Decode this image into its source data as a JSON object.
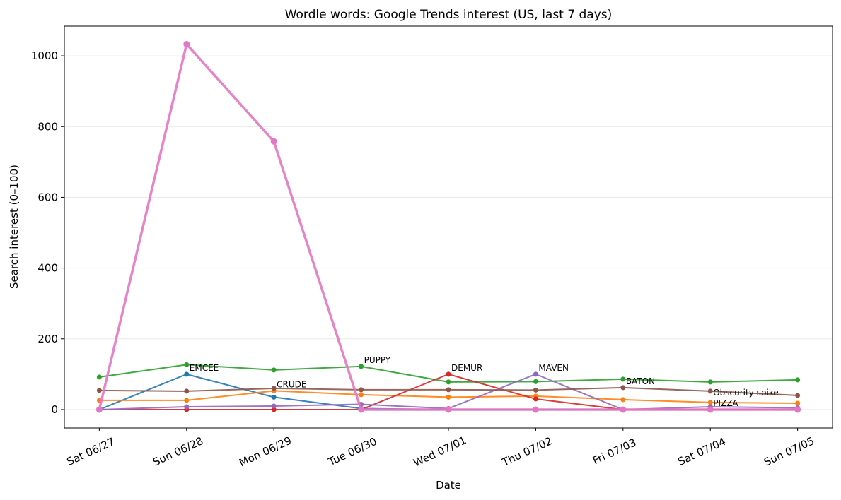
{
  "chart_data": {
    "type": "line",
    "title": "Wordle words: Google Trends interest (US, last 7 days)",
    "xlabel": "Date",
    "ylabel": "Search interest (0–100)",
    "categories": [
      "Sat 06/27",
      "Sun 06/28",
      "Mon 06/29",
      "Tue 06/30",
      "Wed 07/01",
      "Thu 07/02",
      "Fri 07/03",
      "Sat 07/04",
      "Sun 07/05"
    ],
    "series": [
      {
        "color": "#1f77b4",
        "linewidth": 2,
        "values": [
          0,
          100,
          35,
          3,
          0,
          0,
          0,
          0,
          0
        ]
      },
      {
        "color": "#ff7f0e",
        "linewidth": 2,
        "values": [
          26,
          26,
          53,
          42,
          35,
          38,
          28,
          20,
          18
        ]
      },
      {
        "color": "#2ca02c",
        "linewidth": 2,
        "values": [
          92,
          127,
          112,
          122,
          78,
          79,
          86,
          78,
          84
        ]
      },
      {
        "color": "#d62728",
        "linewidth": 2,
        "values": [
          0,
          0,
          0,
          0,
          100,
          30,
          0,
          0,
          0
        ]
      },
      {
        "color": "#9467bd",
        "linewidth": 2,
        "values": [
          0,
          8,
          10,
          15,
          3,
          100,
          0,
          8,
          5
        ]
      },
      {
        "color": "#8c564b",
        "linewidth": 2,
        "values": [
          54,
          52,
          60,
          56,
          56,
          55,
          62,
          52,
          40
        ]
      },
      {
        "color": "#e377c2",
        "linewidth": 3.5,
        "values": [
          0,
          1033,
          758,
          0,
          0,
          0,
          0,
          0,
          0
        ]
      }
    ],
    "annotations": [
      {
        "text": "EMCEE",
        "category": "Sun 06/28",
        "y": 100
      },
      {
        "text": "CRUDE",
        "category": "Mon 06/29",
        "y": 53
      },
      {
        "text": "PUPPY",
        "category": "Tue 06/30",
        "y": 122
      },
      {
        "text": "DEMUR",
        "category": "Wed 07/01",
        "y": 100
      },
      {
        "text": "MAVEN",
        "category": "Thu 07/02",
        "y": 100
      },
      {
        "text": "BATON",
        "category": "Fri 07/03",
        "y": 62
      },
      {
        "text": "PIZZA",
        "category": "Sat 07/04",
        "y": 0
      },
      {
        "text": "Obscurity spike",
        "category": "Sat 07/04",
        "y": 30
      }
    ],
    "ylim": [
      -52,
      1084
    ],
    "yticks": [
      0,
      200,
      400,
      600,
      800,
      1000
    ],
    "grid": true
  }
}
